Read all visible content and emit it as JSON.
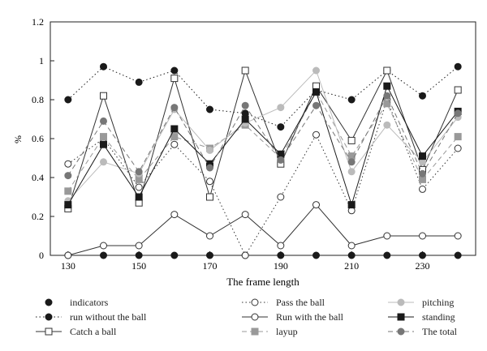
{
  "chart_data": {
    "type": "line",
    "title": "",
    "xlabel": "The frame length",
    "ylabel": "%",
    "x": [
      130,
      140,
      150,
      160,
      170,
      180,
      190,
      200,
      210,
      220,
      230,
      240
    ],
    "xticks": [
      130,
      150,
      170,
      190,
      210,
      230
    ],
    "xlim": [
      125,
      245
    ],
    "yticks": [
      0,
      0.2,
      0.4,
      0.6,
      0.8,
      1,
      1.2
    ],
    "ytick_labels": [
      "0",
      "0.2",
      "0.4",
      "0.6",
      "0.8",
      "1",
      "1.2"
    ],
    "ylim": [
      0,
      1.2
    ],
    "grid": false,
    "legend_position": "bottom",
    "series": [
      {
        "name": "indicators",
        "style": "none",
        "marker": "circle",
        "fill": "#1a1a1a",
        "stroke": "#1a1a1a",
        "values": [
          0,
          0,
          0,
          0,
          0,
          0,
          0,
          0,
          0,
          0,
          0,
          0
        ]
      },
      {
        "name": "run without the ball",
        "style": "dotted",
        "marker": "circle",
        "fill": "#1a1a1a",
        "stroke": "#1a1a1a",
        "values": [
          0.8,
          0.97,
          0.89,
          0.95,
          0.75,
          0.73,
          0.66,
          0.85,
          0.8,
          0.95,
          0.82,
          0.97
        ]
      },
      {
        "name": "Catch a ball",
        "style": "solid",
        "marker": "square",
        "fill": "#ffffff",
        "stroke": "#333333",
        "values": [
          0.24,
          0.82,
          0.27,
          0.91,
          0.3,
          0.95,
          0.47,
          0.87,
          0.59,
          0.95,
          0.44,
          0.85
        ]
      },
      {
        "name": "Pass the ball",
        "style": "dotted",
        "marker": "circle",
        "fill": "#ffffff",
        "stroke": "#333333",
        "values": [
          0.47,
          0.6,
          0.35,
          0.57,
          0.38,
          0.0,
          0.3,
          0.62,
          0.23,
          0.8,
          0.34,
          0.55
        ]
      },
      {
        "name": "Run with the ball",
        "style": "solid",
        "marker": "circle",
        "fill": "#ffffff",
        "stroke": "#333333",
        "values": [
          0,
          0.05,
          0.05,
          0.21,
          0.1,
          0.21,
          0.05,
          0.26,
          0.05,
          0.1,
          0.1,
          0.1
        ]
      },
      {
        "name": "layup",
        "style": "dashed",
        "marker": "square",
        "fill": "#999999",
        "stroke": "#999999",
        "values": [
          0.33,
          0.61,
          0.39,
          0.61,
          0.55,
          0.67,
          0.5,
          0.84,
          0.51,
          0.78,
          0.39,
          0.61
        ]
      },
      {
        "name": "pitching",
        "style": "solid",
        "marker": "circle",
        "fill": "#bbbbbb",
        "stroke": "#bbbbbb",
        "values": [
          0.28,
          0.48,
          0.42,
          0.75,
          0.54,
          0.68,
          0.76,
          0.95,
          0.43,
          0.67,
          0.48,
          0.71
        ]
      },
      {
        "name": "standing",
        "style": "solid",
        "marker": "square",
        "fill": "#1a1a1a",
        "stroke": "#1a1a1a",
        "values": [
          0.26,
          0.57,
          0.3,
          0.65,
          0.47,
          0.7,
          0.52,
          0.84,
          0.26,
          0.87,
          0.51,
          0.74
        ]
      },
      {
        "name": "The total",
        "style": "dashed",
        "marker": "circle",
        "fill": "#777777",
        "stroke": "#777777",
        "values": [
          0.41,
          0.69,
          0.43,
          0.76,
          0.45,
          0.77,
          0.49,
          0.77,
          0.48,
          0.82,
          0.42,
          0.73
        ]
      }
    ]
  }
}
